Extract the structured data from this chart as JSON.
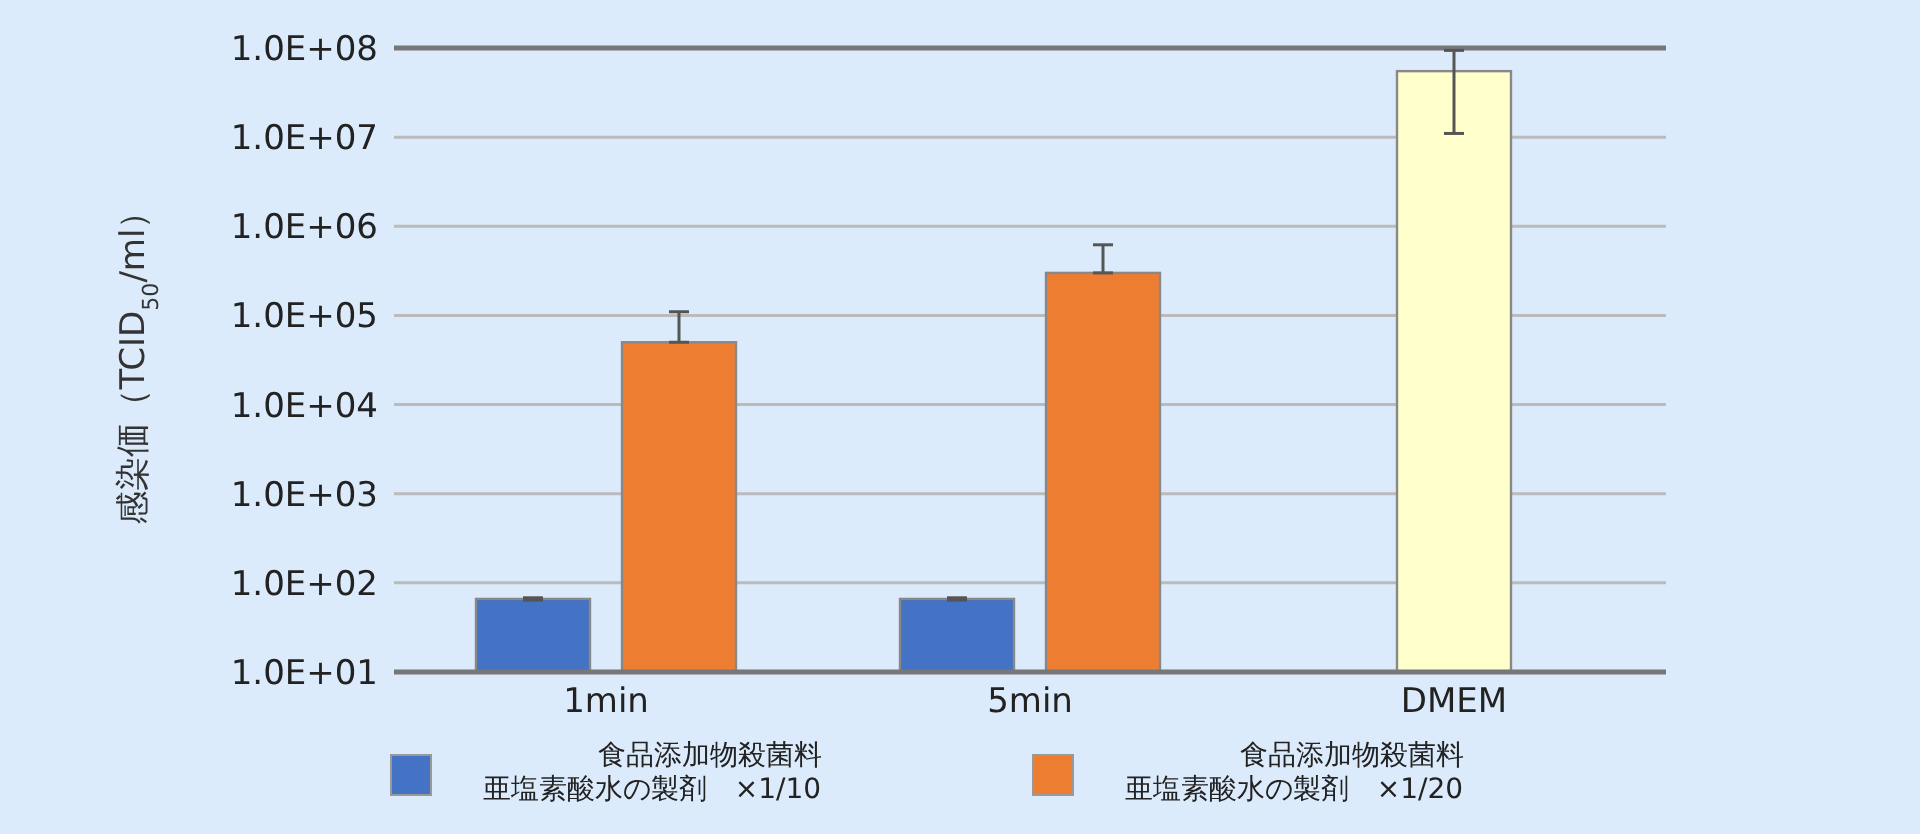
{
  "chart_data": {
    "type": "bar",
    "ylabel": "感染価（TCID$_{50}$/ml）",
    "categories": [
      "1min",
      "5min",
      "DMEM"
    ],
    "series": [
      {
        "name": "食品添加物殺菌料亜塩素酸水の製剤　×1/10",
        "color": "#4472c4",
        "values": [
          66,
          66,
          null
        ],
        "errors": [
          2,
          2,
          null
        ]
      },
      {
        "name": "食品添加物殺菌料亜塩素酸水の製剤　×1/20",
        "color": "#ed7d31",
        "values": [
          50000,
          300000,
          null
        ],
        "errors": [
          [
            50000,
            110000
          ],
          [
            300000,
            620000
          ],
          null
        ]
      },
      {
        "color": "#ffffcc",
        "values": [
          null,
          null,
          55000000
        ],
        "errors": [
          null,
          null,
          [
            11000000,
            94000000
          ]
        ]
      }
    ],
    "log": true,
    "ylim": [
      10,
      100000000
    ],
    "yticks": [
      {
        "value": 10,
        "label": "1.0E+01"
      },
      {
        "value": 100,
        "label": "1.0E+02"
      },
      {
        "value": 1000,
        "label": "1.0E+03"
      },
      {
        "value": 10000,
        "label": "1.0E+04"
      },
      {
        "value": 100000,
        "label": "1.0E+05"
      },
      {
        "value": 1000000,
        "label": "1.0E+06"
      },
      {
        "value": 10000000,
        "label": "1.0E+07"
      },
      {
        "value": 100000000,
        "label": "1.0E+08"
      }
    ],
    "grid": "y",
    "legend": "bottom"
  }
}
